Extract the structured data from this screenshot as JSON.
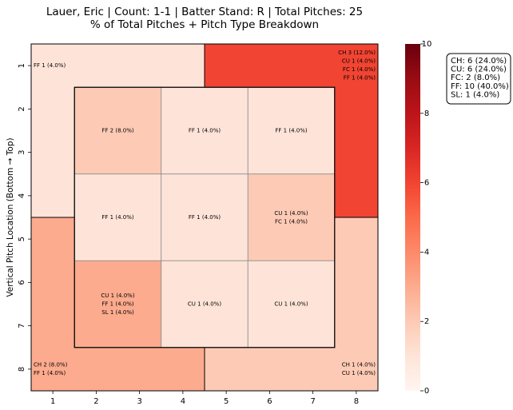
{
  "chart_data": {
    "type": "heatmap",
    "title_line1": "Lauer, Eric | Count: 1-1 | Batter Stand: R | Total Pitches: 25",
    "title_line2": "% of Total Pitches + Pitch Type Breakdown",
    "xlabel": "",
    "ylabel": "Vertical Pitch Location (Bottom → Top)",
    "x_ticks": [
      "1",
      "2",
      "3",
      "4",
      "5",
      "6",
      "7",
      "8"
    ],
    "y_ticks": [
      "1",
      "2",
      "3",
      "4",
      "5",
      "6",
      "7",
      "8"
    ],
    "colorbar": {
      "min": 0,
      "max": 10,
      "ticks": [
        "0",
        "2",
        "4",
        "6",
        "8",
        "10"
      ],
      "colormap": "Reds"
    },
    "zones": [
      {
        "id": "outer-top-left",
        "count": 1,
        "labels": [
          "FF 1 (4.0%)"
        ]
      },
      {
        "id": "outer-top-right",
        "count": 6,
        "labels": [
          "CH 3 (12.0%)",
          "CU 1 (4.0%)",
          "FC 1 (4.0%)",
          "FF 1 (4.0%)"
        ]
      },
      {
        "id": "outer-bottom-left",
        "count": 3,
        "labels": [
          "CH 2 (8.0%)",
          "FF 1 (4.0%)"
        ]
      },
      {
        "id": "outer-bottom-right",
        "count": 2,
        "labels": [
          "CH 1 (4.0%)",
          "CU 1 (4.0%)"
        ]
      },
      {
        "id": "zone-1",
        "count": 2,
        "labels": [
          "FF 2 (8.0%)"
        ]
      },
      {
        "id": "zone-2",
        "count": 1,
        "labels": [
          "FF 1 (4.0%)"
        ]
      },
      {
        "id": "zone-3",
        "count": 1,
        "labels": [
          "FF 1 (4.0%)"
        ]
      },
      {
        "id": "zone-4",
        "count": 1,
        "labels": [
          "FF 1 (4.0%)"
        ]
      },
      {
        "id": "zone-5",
        "count": 1,
        "labels": [
          "FF 1 (4.0%)"
        ]
      },
      {
        "id": "zone-6",
        "count": 2,
        "labels": [
          "CU 1 (4.0%)",
          "FC 1 (4.0%)"
        ]
      },
      {
        "id": "zone-7",
        "count": 3,
        "labels": [
          "CU 1 (4.0%)",
          "FF 1 (4.0%)",
          "SL 1 (4.0%)"
        ]
      },
      {
        "id": "zone-8",
        "count": 1,
        "labels": [
          "CU 1 (4.0%)"
        ]
      },
      {
        "id": "zone-9",
        "count": 1,
        "labels": [
          "CU 1 (4.0%)"
        ]
      }
    ],
    "pitch_summary": [
      "CH: 6 (24.0%)",
      "CU: 6 (24.0%)",
      "FC: 2 (8.0%)",
      "FF: 10 (40.0%)",
      "SL: 1 (4.0%)"
    ]
  }
}
